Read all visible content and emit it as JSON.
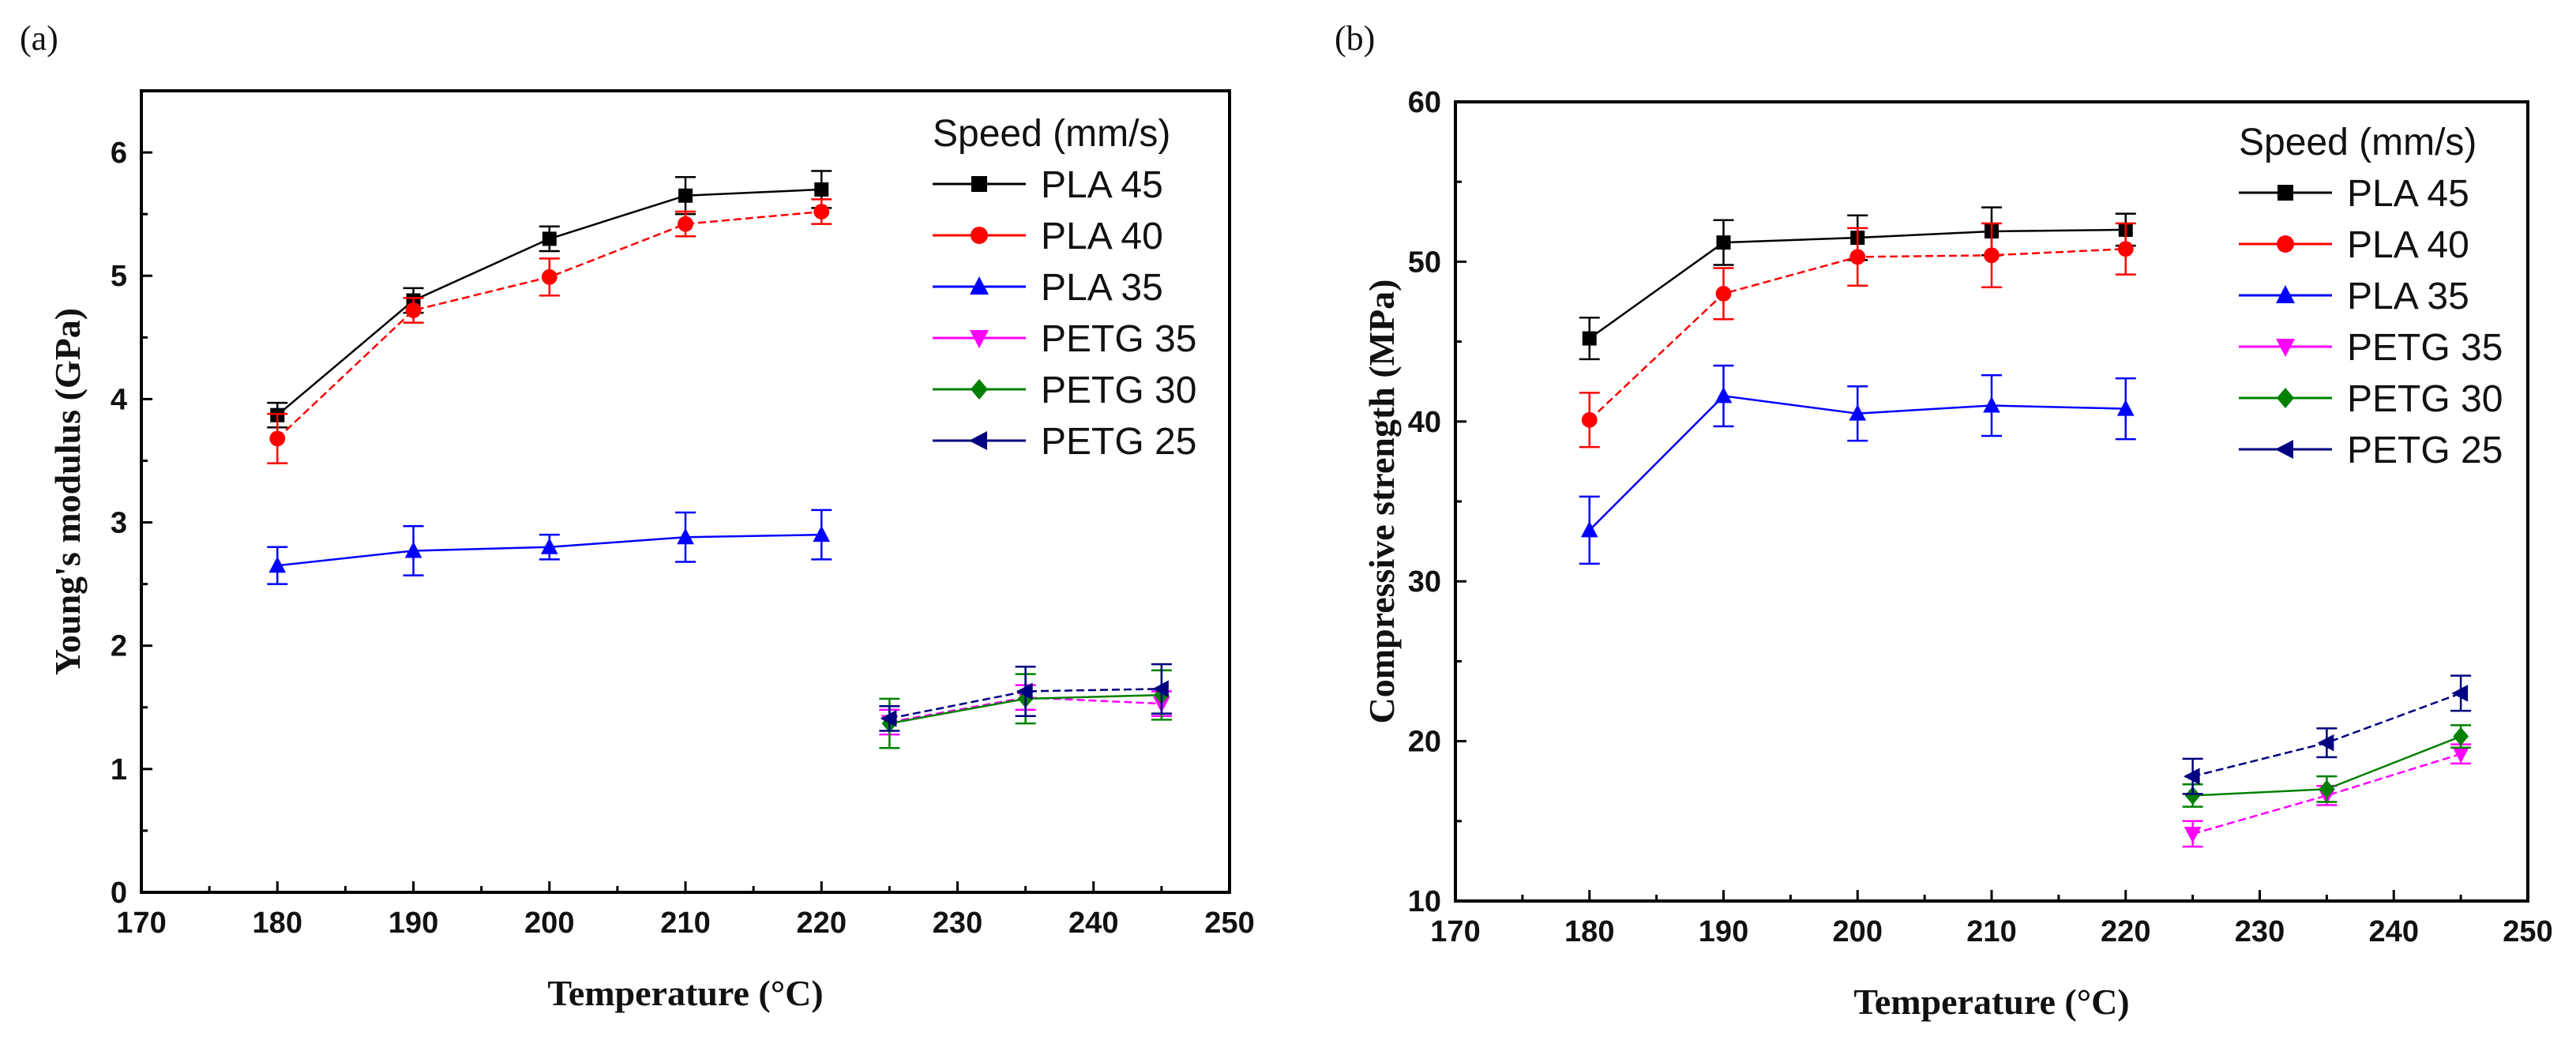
{
  "chart_data": [
    {
      "type": "line",
      "panel_label": "(a)",
      "xlabel": "Temperature (°C)",
      "ylabel": "Young's modulus (GPa)",
      "xlim": [
        170,
        250
      ],
      "ylim": [
        0,
        6.5
      ],
      "xticks": [
        170,
        180,
        190,
        200,
        210,
        220,
        230,
        240,
        250
      ],
      "yticks": [
        0,
        1,
        2,
        3,
        4,
        5,
        6
      ],
      "grid": false,
      "legend_title": "Speed (mm/s)",
      "legend_position": "top-right",
      "series": [
        {
          "name": "PLA 45",
          "color": "#000000",
          "marker": "square",
          "x": [
            180,
            190,
            200,
            210,
            220
          ],
          "values": [
            3.87,
            4.8,
            5.3,
            5.65,
            5.7
          ],
          "error": [
            0.1,
            0.1,
            0.1,
            0.15,
            0.15
          ]
        },
        {
          "name": "PLA 40",
          "color": "#ff0000",
          "marker": "circle",
          "x": [
            180,
            190,
            200,
            210,
            220
          ],
          "values": [
            3.68,
            4.72,
            4.99,
            5.42,
            5.52
          ],
          "error": [
            0.2,
            0.1,
            0.15,
            0.1,
            0.1
          ]
        },
        {
          "name": "PLA 35",
          "color": "#0000ff",
          "marker": "triangle-up",
          "x": [
            180,
            190,
            200,
            210,
            220
          ],
          "values": [
            2.65,
            2.77,
            2.8,
            2.88,
            2.9
          ],
          "error": [
            0.15,
            0.2,
            0.1,
            0.2,
            0.2
          ]
        },
        {
          "name": "PETG 35",
          "color": "#ff00ff",
          "marker": "triangle-down",
          "x": [
            225,
            235,
            245
          ],
          "values": [
            1.38,
            1.58,
            1.53
          ],
          "error": [
            0.1,
            0.1,
            0.1
          ]
        },
        {
          "name": "PETG 30",
          "color": "#008000",
          "marker": "diamond",
          "x": [
            225,
            235,
            245
          ],
          "values": [
            1.37,
            1.57,
            1.6
          ],
          "error": [
            0.2,
            0.2,
            0.2
          ]
        },
        {
          "name": "PETG 25",
          "color": "#000080",
          "marker": "triangle-left",
          "x": [
            225,
            235,
            245
          ],
          "values": [
            1.41,
            1.63,
            1.65
          ],
          "error": [
            0.1,
            0.2,
            0.2
          ]
        }
      ]
    },
    {
      "type": "line",
      "panel_label": "(b)",
      "xlabel": "Temperature (°C)",
      "ylabel": "Compressive strength (MPa)",
      "xlim": [
        170,
        250
      ],
      "ylim": [
        10,
        60
      ],
      "xticks": [
        170,
        180,
        190,
        200,
        210,
        220,
        230,
        240,
        250
      ],
      "yticks": [
        10,
        20,
        30,
        40,
        50,
        60
      ],
      "grid": false,
      "legend_title": "Speed (mm/s)",
      "legend_position": "top-right",
      "series": [
        {
          "name": "PLA 45",
          "color": "#000000",
          "marker": "square",
          "x": [
            180,
            190,
            200,
            210,
            220
          ],
          "values": [
            45.2,
            51.2,
            51.5,
            51.9,
            52.0
          ],
          "error": [
            1.3,
            1.4,
            1.4,
            1.5,
            1.0
          ]
        },
        {
          "name": "PLA 40",
          "color": "#ff0000",
          "marker": "circle",
          "x": [
            180,
            190,
            200,
            210,
            220
          ],
          "values": [
            40.1,
            48.0,
            50.3,
            50.4,
            50.8
          ],
          "error": [
            1.7,
            1.6,
            1.8,
            2.0,
            1.6
          ]
        },
        {
          "name": "PLA 35",
          "color": "#0000ff",
          "marker": "triangle-up",
          "x": [
            180,
            190,
            200,
            210,
            220
          ],
          "values": [
            33.2,
            41.6,
            40.5,
            41.0,
            40.8
          ],
          "error": [
            2.1,
            1.9,
            1.7,
            1.9,
            1.9
          ]
        },
        {
          "name": "PETG 35",
          "color": "#ff00ff",
          "marker": "triangle-down",
          "x": [
            225,
            235,
            245
          ],
          "values": [
            14.2,
            16.6,
            19.2
          ],
          "error": [
            0.8,
            0.6,
            0.6
          ]
        },
        {
          "name": "PETG 30",
          "color": "#008000",
          "marker": "diamond",
          "x": [
            225,
            235,
            245
          ],
          "values": [
            16.6,
            17.0,
            20.3
          ],
          "error": [
            0.7,
            0.8,
            0.7
          ]
        },
        {
          "name": "PETG 25",
          "color": "#000080",
          "marker": "triangle-left",
          "x": [
            225,
            235,
            245
          ],
          "values": [
            17.8,
            19.9,
            23.0
          ],
          "error": [
            1.1,
            0.9,
            1.1
          ]
        }
      ]
    }
  ]
}
